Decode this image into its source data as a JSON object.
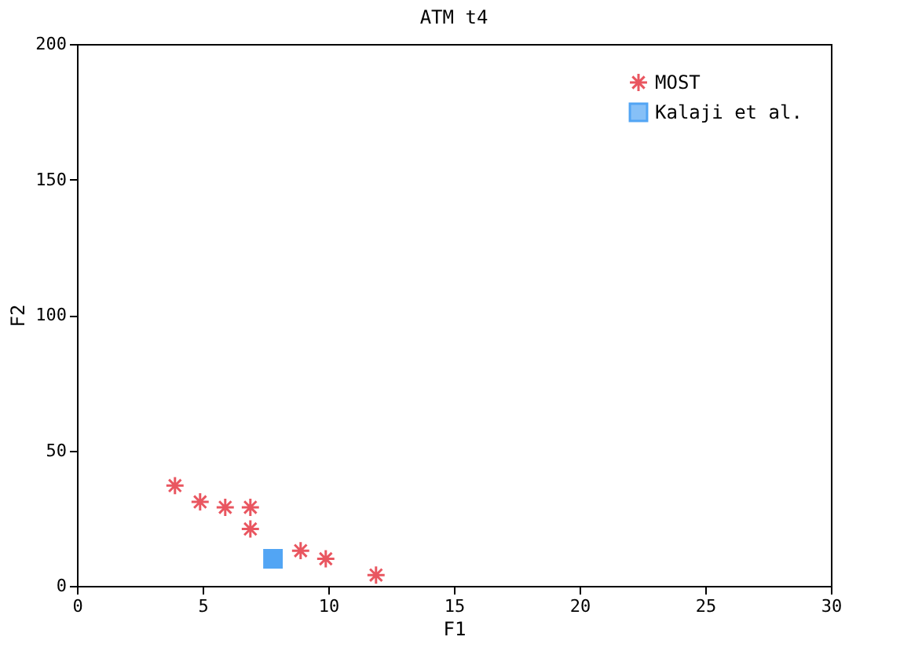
{
  "chart_data": {
    "type": "scatter",
    "title": "ATM t4",
    "xlabel": "F1",
    "ylabel": "F2",
    "xlim": [
      0,
      30
    ],
    "ylim": [
      0,
      200
    ],
    "xticks": [
      0,
      5,
      10,
      15,
      20,
      25,
      30
    ],
    "yticks": [
      0,
      50,
      100,
      150,
      200
    ],
    "grid": false,
    "legend": "top right",
    "series": [
      {
        "name": "MOST",
        "color": "#e0101e",
        "marker": "cross",
        "x": [
          3.9,
          4.9,
          5.9,
          6.9,
          6.9,
          8.9,
          9.9,
          11.9
        ],
        "values": [
          37,
          31,
          29,
          29,
          21,
          13,
          10,
          4
        ]
      },
      {
        "name": "Kalaji et al.",
        "color": "#0a7ff0",
        "marker": "square",
        "x": [
          7.8
        ],
        "values": [
          10
        ]
      }
    ]
  }
}
